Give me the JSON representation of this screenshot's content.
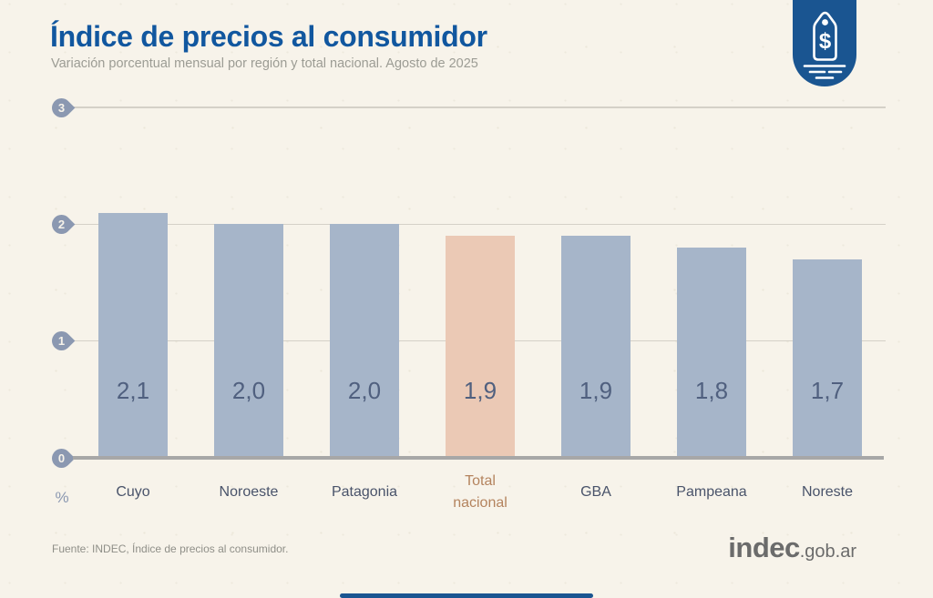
{
  "page": {
    "background": "#f7f3ea",
    "accent_blue": "#15579a"
  },
  "header": {
    "title": "Índice de precios al consumidor",
    "subtitle": "Variación porcentual mensual por región y total nacional. Agosto de 2025"
  },
  "badge": {
    "currency_symbol": "$"
  },
  "chart_data": {
    "type": "bar",
    "title": "Índice de precios al consumidor",
    "subtitle": "Variación porcentual mensual por región y total nacional. Agosto de 2025",
    "categories": [
      "Cuyo",
      "Noroeste",
      "Patagonia",
      "Total nacional",
      "GBA",
      "Pampeana",
      "Noreste"
    ],
    "values": [
      2.1,
      2.0,
      2.0,
      1.9,
      1.9,
      1.8,
      1.7
    ],
    "value_labels": [
      "2,1",
      "2,0",
      "2,0",
      "1,9",
      "1,9",
      "1,8",
      "1,7"
    ],
    "category_labels": [
      "Cuyo",
      "Noroeste",
      "Patagonia",
      "Total\nnacional",
      "GBA",
      "Pampeana",
      "Noreste"
    ],
    "highlight_category": "Total nacional",
    "highlight_index": 3,
    "ylabel": "%",
    "ylim": [
      0,
      3
    ],
    "yticks": [
      3,
      2,
      1,
      0
    ],
    "ytick_labels": [
      "3",
      "2",
      "1",
      "0"
    ],
    "grid": true,
    "legend": false,
    "colors": {
      "bar": "#a6b5c9",
      "highlight_bar": "#ebc9b5",
      "value_label": "#50607f",
      "category_label": "#49536a",
      "highlight_category_label": "#b4835e",
      "gridline": "#d4d0c7",
      "axis_line": "#a7a7a7",
      "tick_marker": "#8b98b1"
    }
  },
  "footer": {
    "source": "Fuente: INDEC, Índice de precios al consumidor.",
    "logo_text": "indec",
    "logo_suffix": ".gob.ar"
  }
}
